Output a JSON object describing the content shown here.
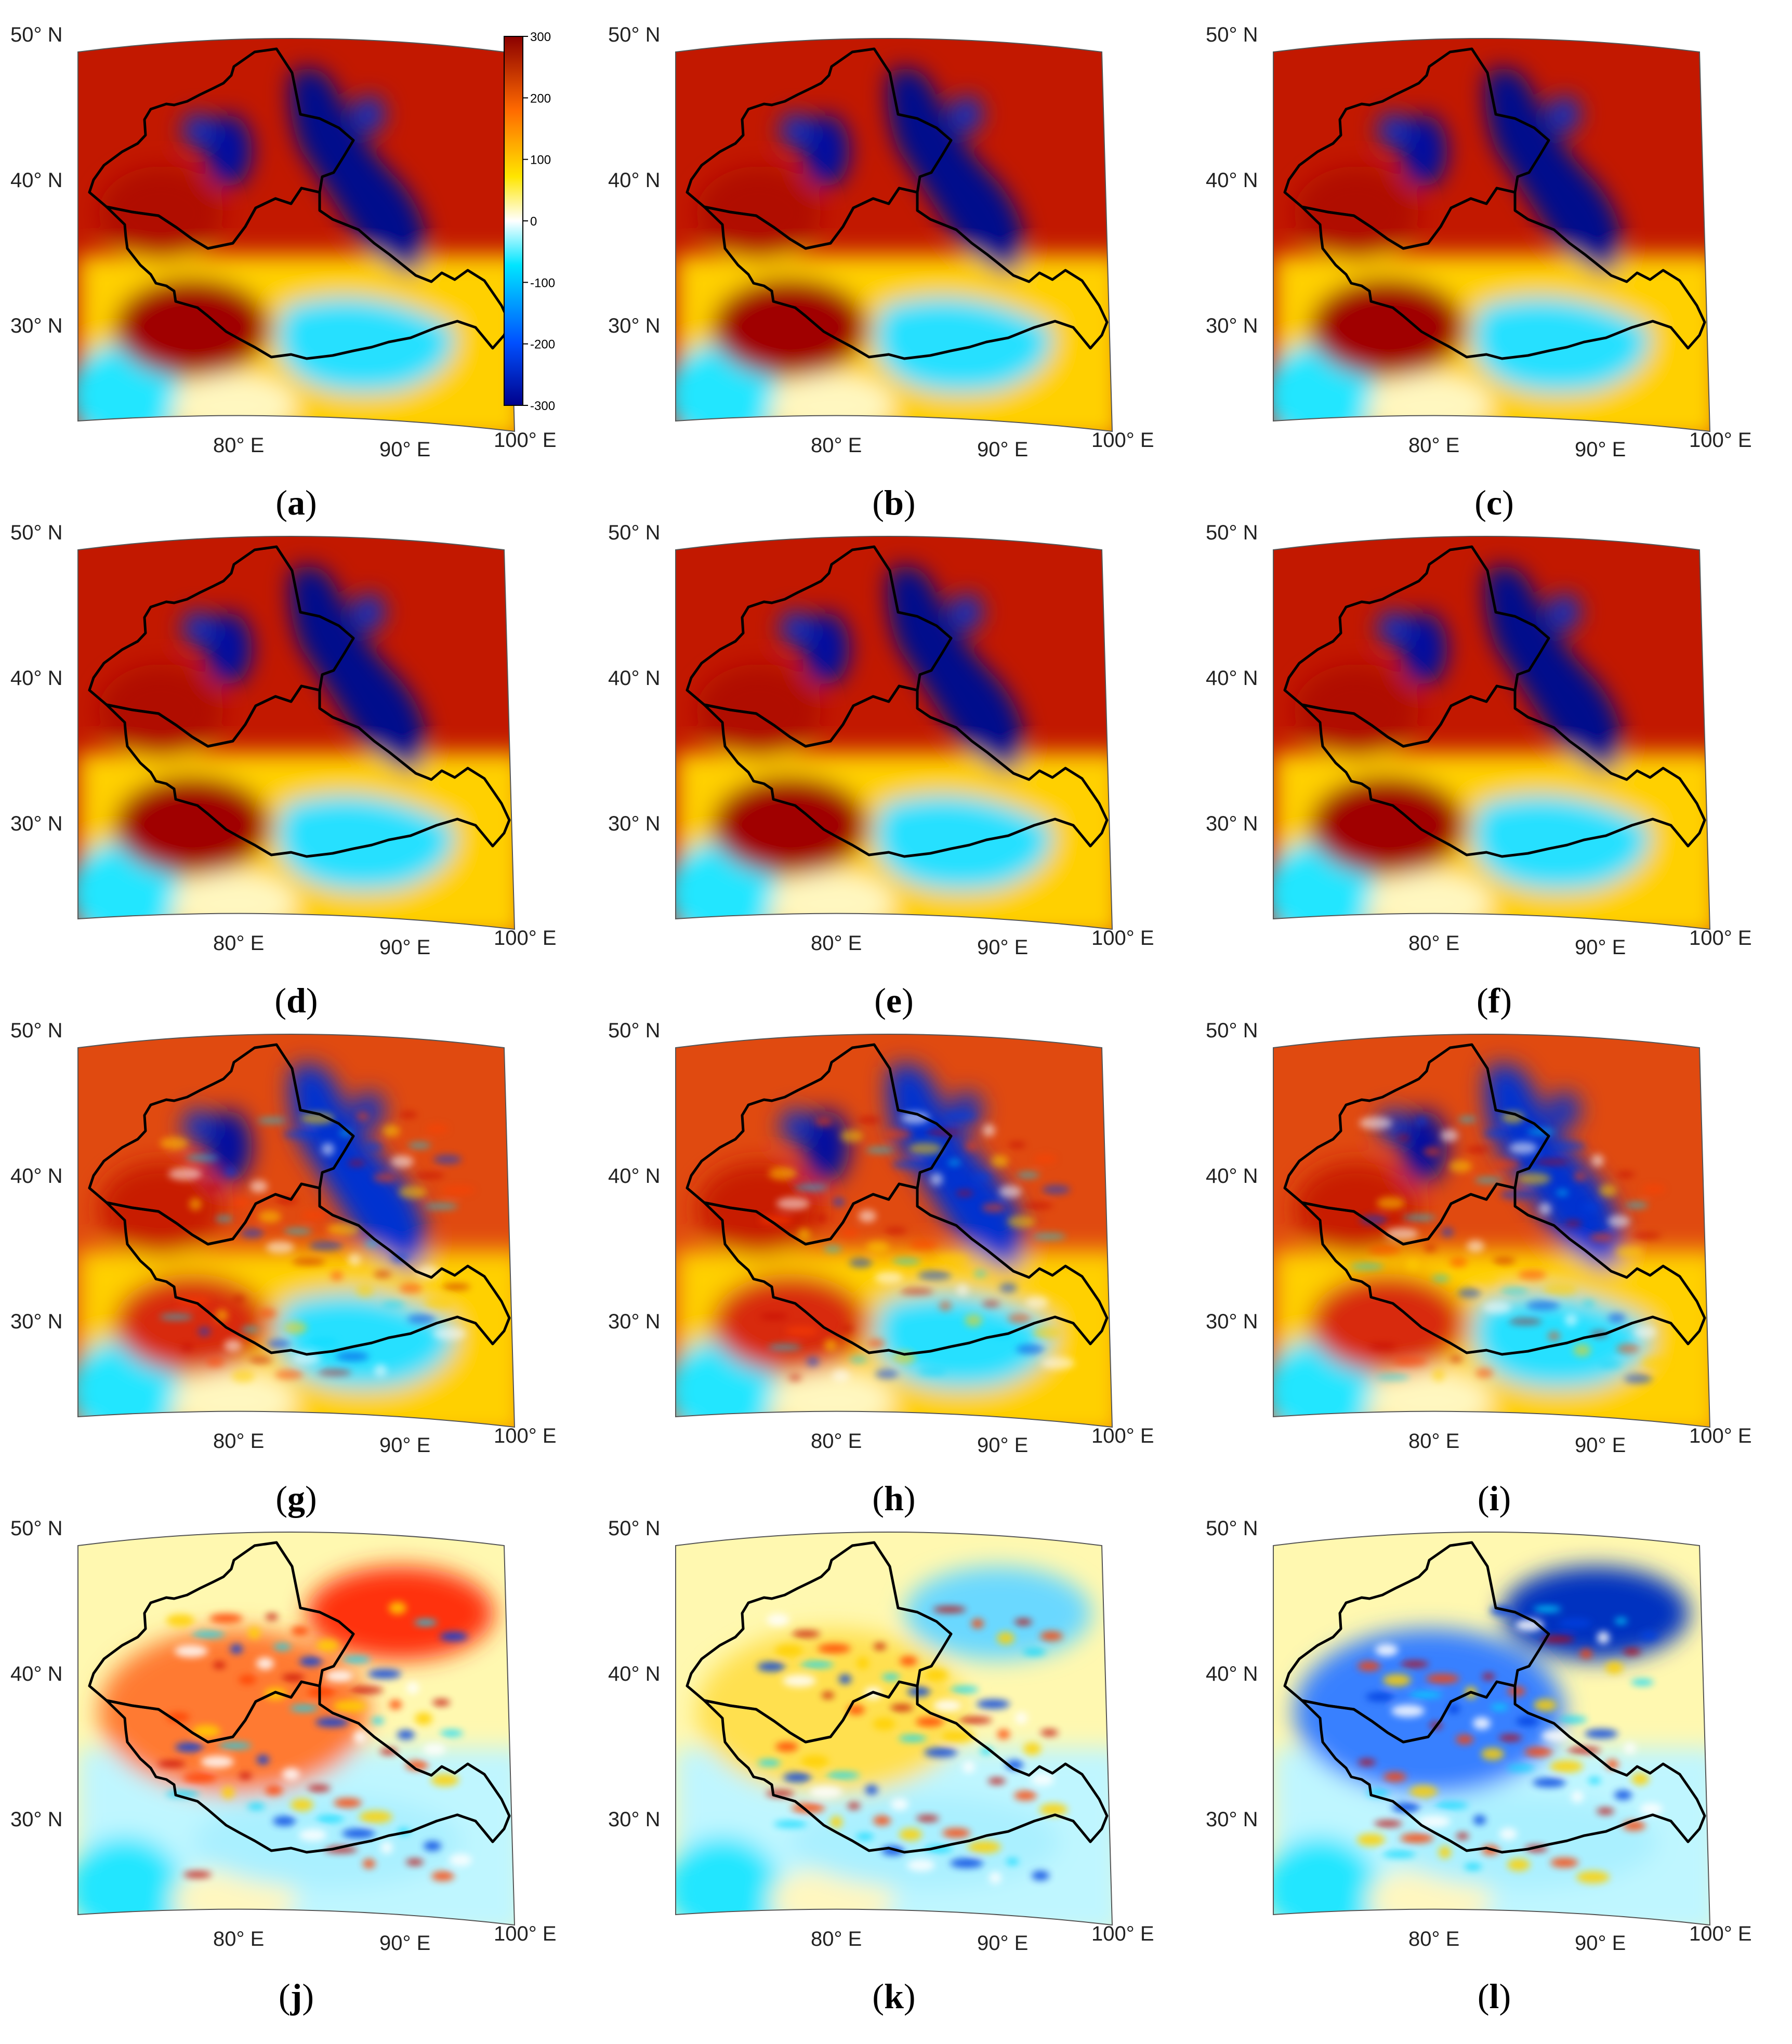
{
  "figure": {
    "lat_labels": [
      {
        "value": 50,
        "text": "50° N"
      },
      {
        "value": 40,
        "text": "40° N"
      },
      {
        "value": 30,
        "text": "30° N"
      }
    ],
    "lon_labels": [
      {
        "value": 80,
        "text": "80° E"
      },
      {
        "value": 90,
        "text": "90° E"
      },
      {
        "value": 100,
        "text": "100° E"
      }
    ],
    "colorbar": {
      "min": -300,
      "max": 300,
      "ticks": [
        "300",
        "200",
        "100",
        "0",
        "-100",
        "-200",
        "-300"
      ],
      "colors": [
        "#00008b",
        "#0050ff",
        "#00e5ff",
        "#ffffff",
        "#ffe600",
        "#ff6a00",
        "#8b0000"
      ]
    },
    "panels": [
      {
        "id": "a",
        "caption": "(a)",
        "letter": "a"
      },
      {
        "id": "b",
        "caption": "(b)",
        "letter": "b"
      },
      {
        "id": "c",
        "caption": "(c)",
        "letter": "c"
      },
      {
        "id": "d",
        "caption": "(d)",
        "letter": "d"
      },
      {
        "id": "e",
        "caption": "(e)",
        "letter": "e"
      },
      {
        "id": "f",
        "caption": "(f)",
        "letter": "f"
      },
      {
        "id": "g",
        "caption": "(g)",
        "letter": "g"
      },
      {
        "id": "h",
        "caption": "(h)",
        "letter": "h"
      },
      {
        "id": "i",
        "caption": "(i)",
        "letter": "i"
      },
      {
        "id": "j",
        "caption": "(j)",
        "letter": "j"
      },
      {
        "id": "k",
        "caption": "(k)",
        "letter": "k"
      },
      {
        "id": "l",
        "caption": "(l)",
        "letter": "l"
      }
    ]
  }
}
